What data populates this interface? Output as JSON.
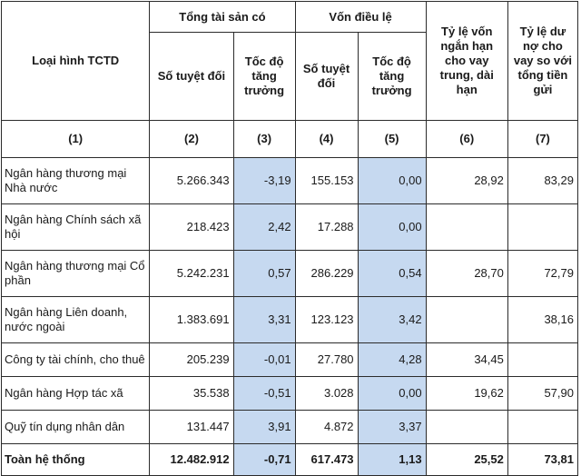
{
  "header": {
    "loai_hinh": "Loại hình TCTD",
    "tong_tai_san": "Tổng tài sản có",
    "von_dieu_le": "Vốn điều lệ",
    "ty_le_von": "Tỷ lệ vốn ngắn hạn cho vay trung, dài hạn",
    "ty_le_du_no": "Tỷ lệ dư nợ cho vay so với tổng tiền gửi",
    "so_tuyet_doi_1": "Số tuyệt đối",
    "toc_do_1": "Tốc độ tăng trưởng",
    "so_tuyet_doi_2": "Số tuyệt đối",
    "toc_do_2": "Tốc độ tăng trưởng"
  },
  "col_numbers": [
    "(1)",
    "(2)",
    "(3)",
    "(4)",
    "(5)",
    "(6)",
    "(7)"
  ],
  "rows": [
    {
      "name": "Ngân hàng thương mại Nhà nước",
      "c2": "5.266.343",
      "c3": "-3,19",
      "c4": "155.153",
      "c5": "0,00",
      "c6": "28,92",
      "c7": "83,29"
    },
    {
      "name": "Ngân hàng Chính sách xã hội",
      "c2": "218.423",
      "c3": "2,42",
      "c4": "17.288",
      "c5": "0,00",
      "c6": "",
      "c7": ""
    },
    {
      "name": "Ngân hàng thương mại Cổ phần",
      "c2": "5.242.231",
      "c3": "0,57",
      "c4": "286.229",
      "c5": "0,54",
      "c6": "28,70",
      "c7": "72,79"
    },
    {
      "name": "Ngân hàng Liên doanh, nước ngoài",
      "c2": "1.383.691",
      "c3": "3,31",
      "c4": "123.123",
      "c5": "3,42",
      "c6": "",
      "c7": "38,16"
    },
    {
      "name": "Công ty tài chính, cho thuê",
      "c2": "205.239",
      "c3": "-0,01",
      "c4": "27.780",
      "c5": "4,28",
      "c6": "34,45",
      "c7": ""
    },
    {
      "name": "Ngân hàng Hợp tác xã",
      "c2": "35.538",
      "c3": "-0,51",
      "c4": "3.028",
      "c5": "0,00",
      "c6": "19,62",
      "c7": "57,90"
    },
    {
      "name": "Quỹ tín dụng nhân dân",
      "c2": "131.447",
      "c3": "3,91",
      "c4": "4.872",
      "c5": "3,37",
      "c6": "",
      "c7": ""
    }
  ],
  "total": {
    "name": "Toàn hệ thống",
    "c2": "12.482.912",
    "c3": "-0,71",
    "c4": "617.473",
    "c5": "1,13",
    "c6": "25,52",
    "c7": "73,81"
  },
  "colors": {
    "highlight": "#c6d9f0",
    "border": "#2b2b2b"
  }
}
